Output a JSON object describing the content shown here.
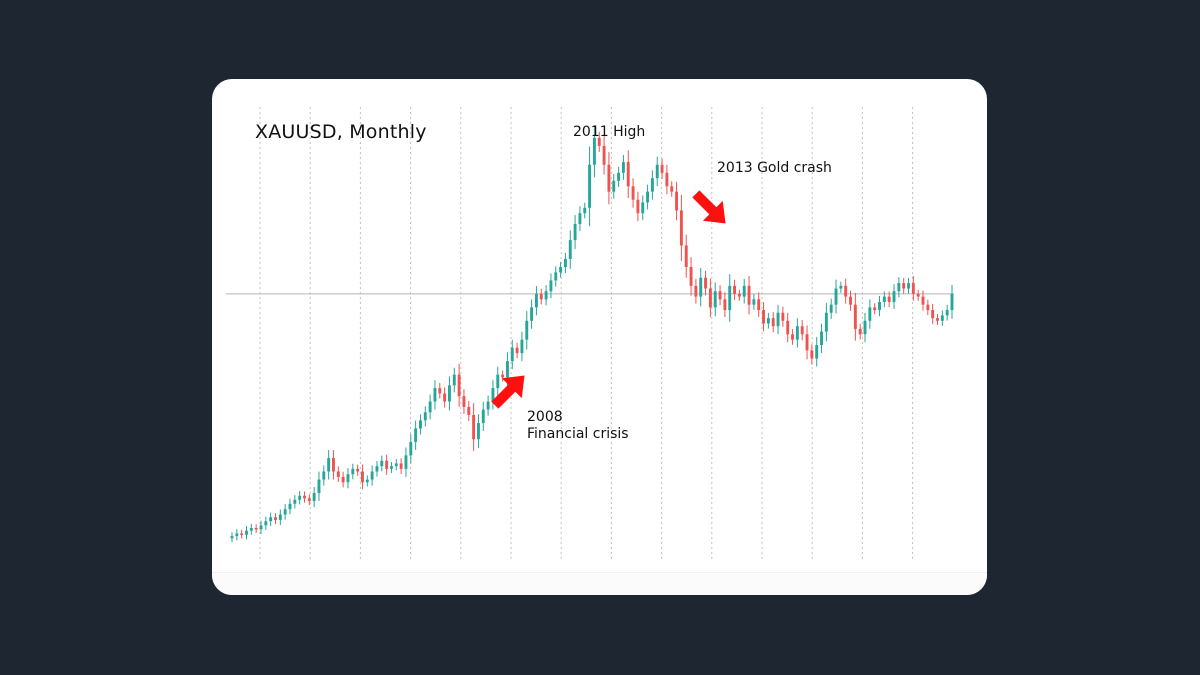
{
  "chart_data": {
    "type": "candlestick",
    "title": "XAUUSD, Monthly",
    "xlabel": "",
    "ylabel": "",
    "grid": {
      "vertical": "dashed",
      "horizontal": false
    },
    "reference_line": 1300,
    "colors": {
      "up": "#26a69a",
      "down": "#ef5350",
      "arrow": "#ff1010",
      "grid": "#bfbfbf"
    },
    "series": [
      {
        "name": "",
        "close": [
          400,
          410,
          405,
          420,
          430,
          425,
          440,
          455,
          470,
          460,
          480,
          500,
          520,
          535,
          550,
          540,
          530,
          560,
          610,
          640,
          690,
          640,
          620,
          600,
          630,
          650,
          640,
          600,
          610,
          640,
          660,
          680,
          650,
          660,
          670,
          650,
          700,
          750,
          800,
          830,
          860,
          900,
          950,
          930,
          900,
          960,
          1000,
          920,
          880,
          850,
          760,
          820,
          870,
          900,
          950,
          1000,
          990,
          1050,
          1100,
          1080,
          1130,
          1200,
          1250,
          1300,
          1280,
          1310,
          1350,
          1380,
          1400,
          1430,
          1500,
          1560,
          1600,
          1620,
          1780,
          1880,
          1850,
          1780,
          1680,
          1720,
          1750,
          1790,
          1700,
          1650,
          1600,
          1640,
          1680,
          1730,
          1780,
          1750,
          1700,
          1680,
          1610,
          1480,
          1400,
          1330,
          1290,
          1360,
          1320,
          1250,
          1310,
          1280,
          1240,
          1330,
          1300,
          1290,
          1330,
          1260,
          1280,
          1240,
          1190,
          1210,
          1180,
          1230,
          1200,
          1150,
          1130,
          1180,
          1150,
          1090,
          1060,
          1110,
          1160,
          1230,
          1260,
          1320,
          1330,
          1290,
          1260,
          1170,
          1150,
          1200,
          1250,
          1240,
          1270,
          1290,
          1270,
          1310,
          1340,
          1320,
          1340,
          1300,
          1290,
          1260,
          1240,
          1210,
          1200,
          1220,
          1240,
          1300
        ]
      }
    ],
    "x_gridlines": 14
  },
  "labels": {
    "title": "XAUUSD, Monthly",
    "high_2011": "2011 High",
    "crash_2013": "2013 Gold crash",
    "crisis_2008_line1": "2008",
    "crisis_2008_line2": "Financial crisis"
  }
}
